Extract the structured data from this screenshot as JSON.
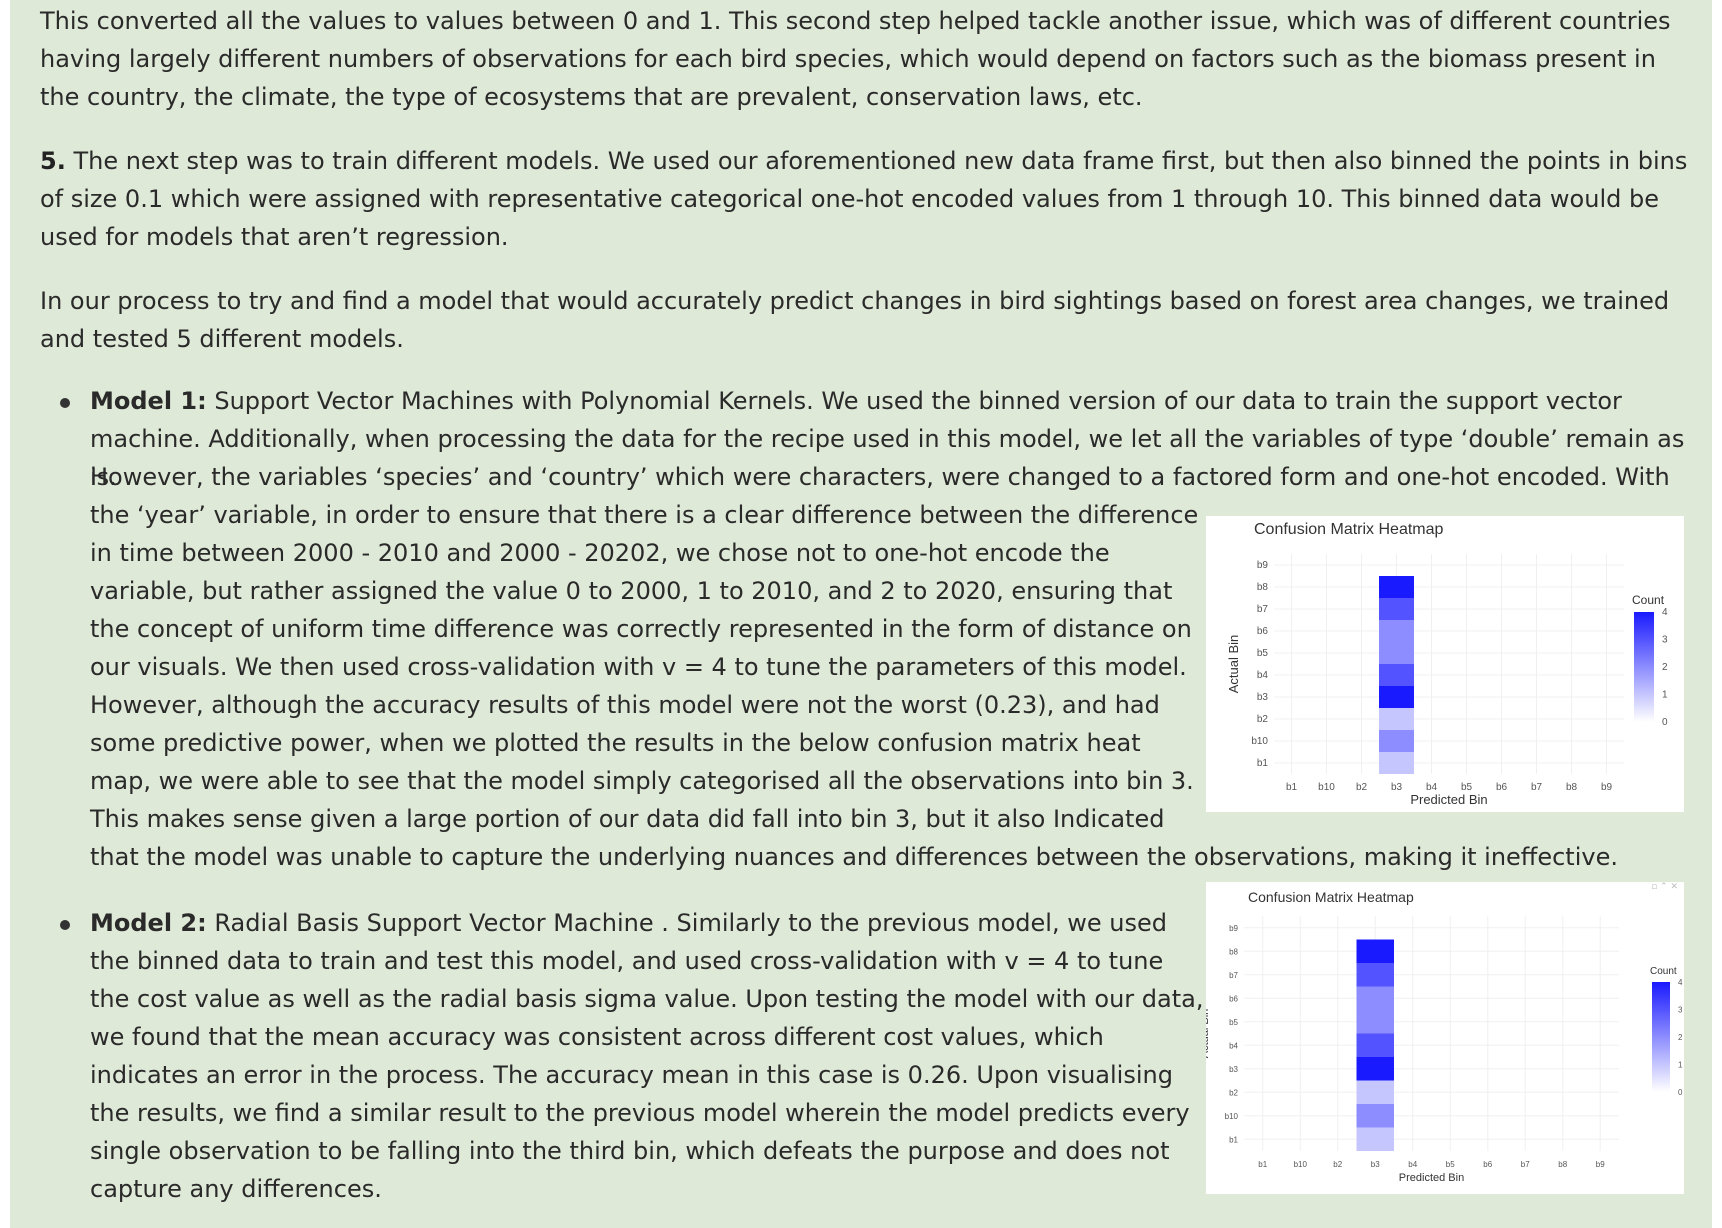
{
  "intro": {
    "text": "This converted all the values to values between 0 and 1. This second step helped tackle another issue, which was of different countries having largely different numbers of observations for each bird species, which would depend on factors such as the biomass present in the country, the climate, the type of ecosystems that are prevalent, conservation laws, etc."
  },
  "step5": {
    "number": "5.",
    "text": " The next step was to train different models. We used our aforementioned new data frame first, but then also binned the points in bins of size 0.1 which were assigned with representative categorical one-hot encoded values from 1 through 10. This binned data would be used for models that aren’t regression."
  },
  "process": {
    "text": "In our process to try and find a model that would accurately predict changes in bird sightings based on forest area changes, we trained and tested 5 different models."
  },
  "model1": {
    "label": "Model 1:",
    "line1": " Support Vector Machines with Polynomial Kernels. We used the binned version of our data to train the support vector",
    "line2": "machine. Additionally, when processing the data for the recipe used in this model, we let all the variables of type ‘double’ remain as is.",
    "line3": "However, the variables ‘species’ and ‘country’ which were characters, were changed to a factored form and one-hot encoded. With",
    "line4": "the ‘year’ variable, in order to ensure that there is a clear difference between the difference",
    "line5": "in time between 2000 - 2010 and 2000 - 20202, we chose not to one-hot encode the",
    "line6": "variable, but rather assigned the value 0 to 2000, 1 to 2010, and 2 to 2020, ensuring that",
    "line7": "the concept of uniform time difference was correctly represented in the form of distance on",
    "line8": "our visuals. We then used cross-validation with v = 4 to tune the parameters of this model.",
    "line9": "However, although the accuracy results of this model were not the worst (0.23), and had",
    "line10": "some predictive power, when we plotted the results in the below confusion matrix heat",
    "line11": "map, we were able to see that the model simply categorised all the observations into bin 3.",
    "line12": "This makes sense given a large portion of our data did fall into bin 3, but it also Indicated",
    "line13": "that the model was unable to capture the underlying nuances and differences between the observations, making it ineffective."
  },
  "model2": {
    "label": "Model 2:",
    "line1": " Radial Basis Support Vector Machine . Similarly to the previous model, we used",
    "line2": "the binned data to train and test this model, and used cross-validation with v = 4 to tune",
    "line3": "the cost value as well as the radial basis sigma value. Upon testing the model with our data,",
    "line4": "we found that the mean accuracy was consistent across different cost values, which",
    "line5": "indicates an error in the process. The accuracy mean in this case is 0.26. Upon visualising",
    "line6": "the results, we find a similar result to the previous model wherein the model predicts every",
    "line7": "single observation to be falling into the third bin, which defeats the purpose and does not",
    "line8": "capture any differences."
  },
  "chart_data": [
    {
      "type": "heatmap",
      "title": "Confusion Matrix Heatmap",
      "xlabel": "Predicted Bin",
      "ylabel": "Actual Bin",
      "x_categories": [
        "b1",
        "b10",
        "b2",
        "b3",
        "b4",
        "b5",
        "b6",
        "b7",
        "b8",
        "b9"
      ],
      "y_categories": [
        "b1",
        "b10",
        "b2",
        "b3",
        "b4",
        "b5",
        "b6",
        "b7",
        "b8",
        "b9"
      ],
      "cells": [
        {
          "x": "b3",
          "y": "b1",
          "count": 1
        },
        {
          "x": "b3",
          "y": "b10",
          "count": 2
        },
        {
          "x": "b3",
          "y": "b2",
          "count": 1
        },
        {
          "x": "b3",
          "y": "b3",
          "count": 4
        },
        {
          "x": "b3",
          "y": "b4",
          "count": 3
        },
        {
          "x": "b3",
          "y": "b5",
          "count": 2
        },
        {
          "x": "b3",
          "y": "b6",
          "count": 2
        },
        {
          "x": "b3",
          "y": "b7",
          "count": 3
        },
        {
          "x": "b3",
          "y": "b8",
          "count": 4
        }
      ],
      "legend_title": "Count",
      "legend_ticks": [
        "4",
        "3",
        "2",
        "1",
        "0"
      ],
      "color_low": "#ffffff",
      "color_high": "#1a1aff"
    },
    {
      "type": "heatmap",
      "title": "Confusion Matrix Heatmap",
      "xlabel": "Predicted Bin",
      "ylabel": "Actual Bin",
      "x_categories": [
        "b1",
        "b10",
        "b2",
        "b3",
        "b4",
        "b5",
        "b6",
        "b7",
        "b8",
        "b9"
      ],
      "y_categories": [
        "b1",
        "b10",
        "b2",
        "b3",
        "b4",
        "b5",
        "b6",
        "b7",
        "b8",
        "b9"
      ],
      "cells": [
        {
          "x": "b3",
          "y": "b1",
          "count": 1
        },
        {
          "x": "b3",
          "y": "b10",
          "count": 2
        },
        {
          "x": "b3",
          "y": "b2",
          "count": 1
        },
        {
          "x": "b3",
          "y": "b3",
          "count": 4
        },
        {
          "x": "b3",
          "y": "b4",
          "count": 3
        },
        {
          "x": "b3",
          "y": "b5",
          "count": 2
        },
        {
          "x": "b3",
          "y": "b6",
          "count": 2
        },
        {
          "x": "b3",
          "y": "b7",
          "count": 3
        },
        {
          "x": "b3",
          "y": "b8",
          "count": 4
        }
      ],
      "legend_title": "Count",
      "legend_ticks": [
        "4",
        "3",
        "2",
        "1",
        "0"
      ],
      "color_low": "#ffffff",
      "color_high": "#1a1aff"
    }
  ]
}
